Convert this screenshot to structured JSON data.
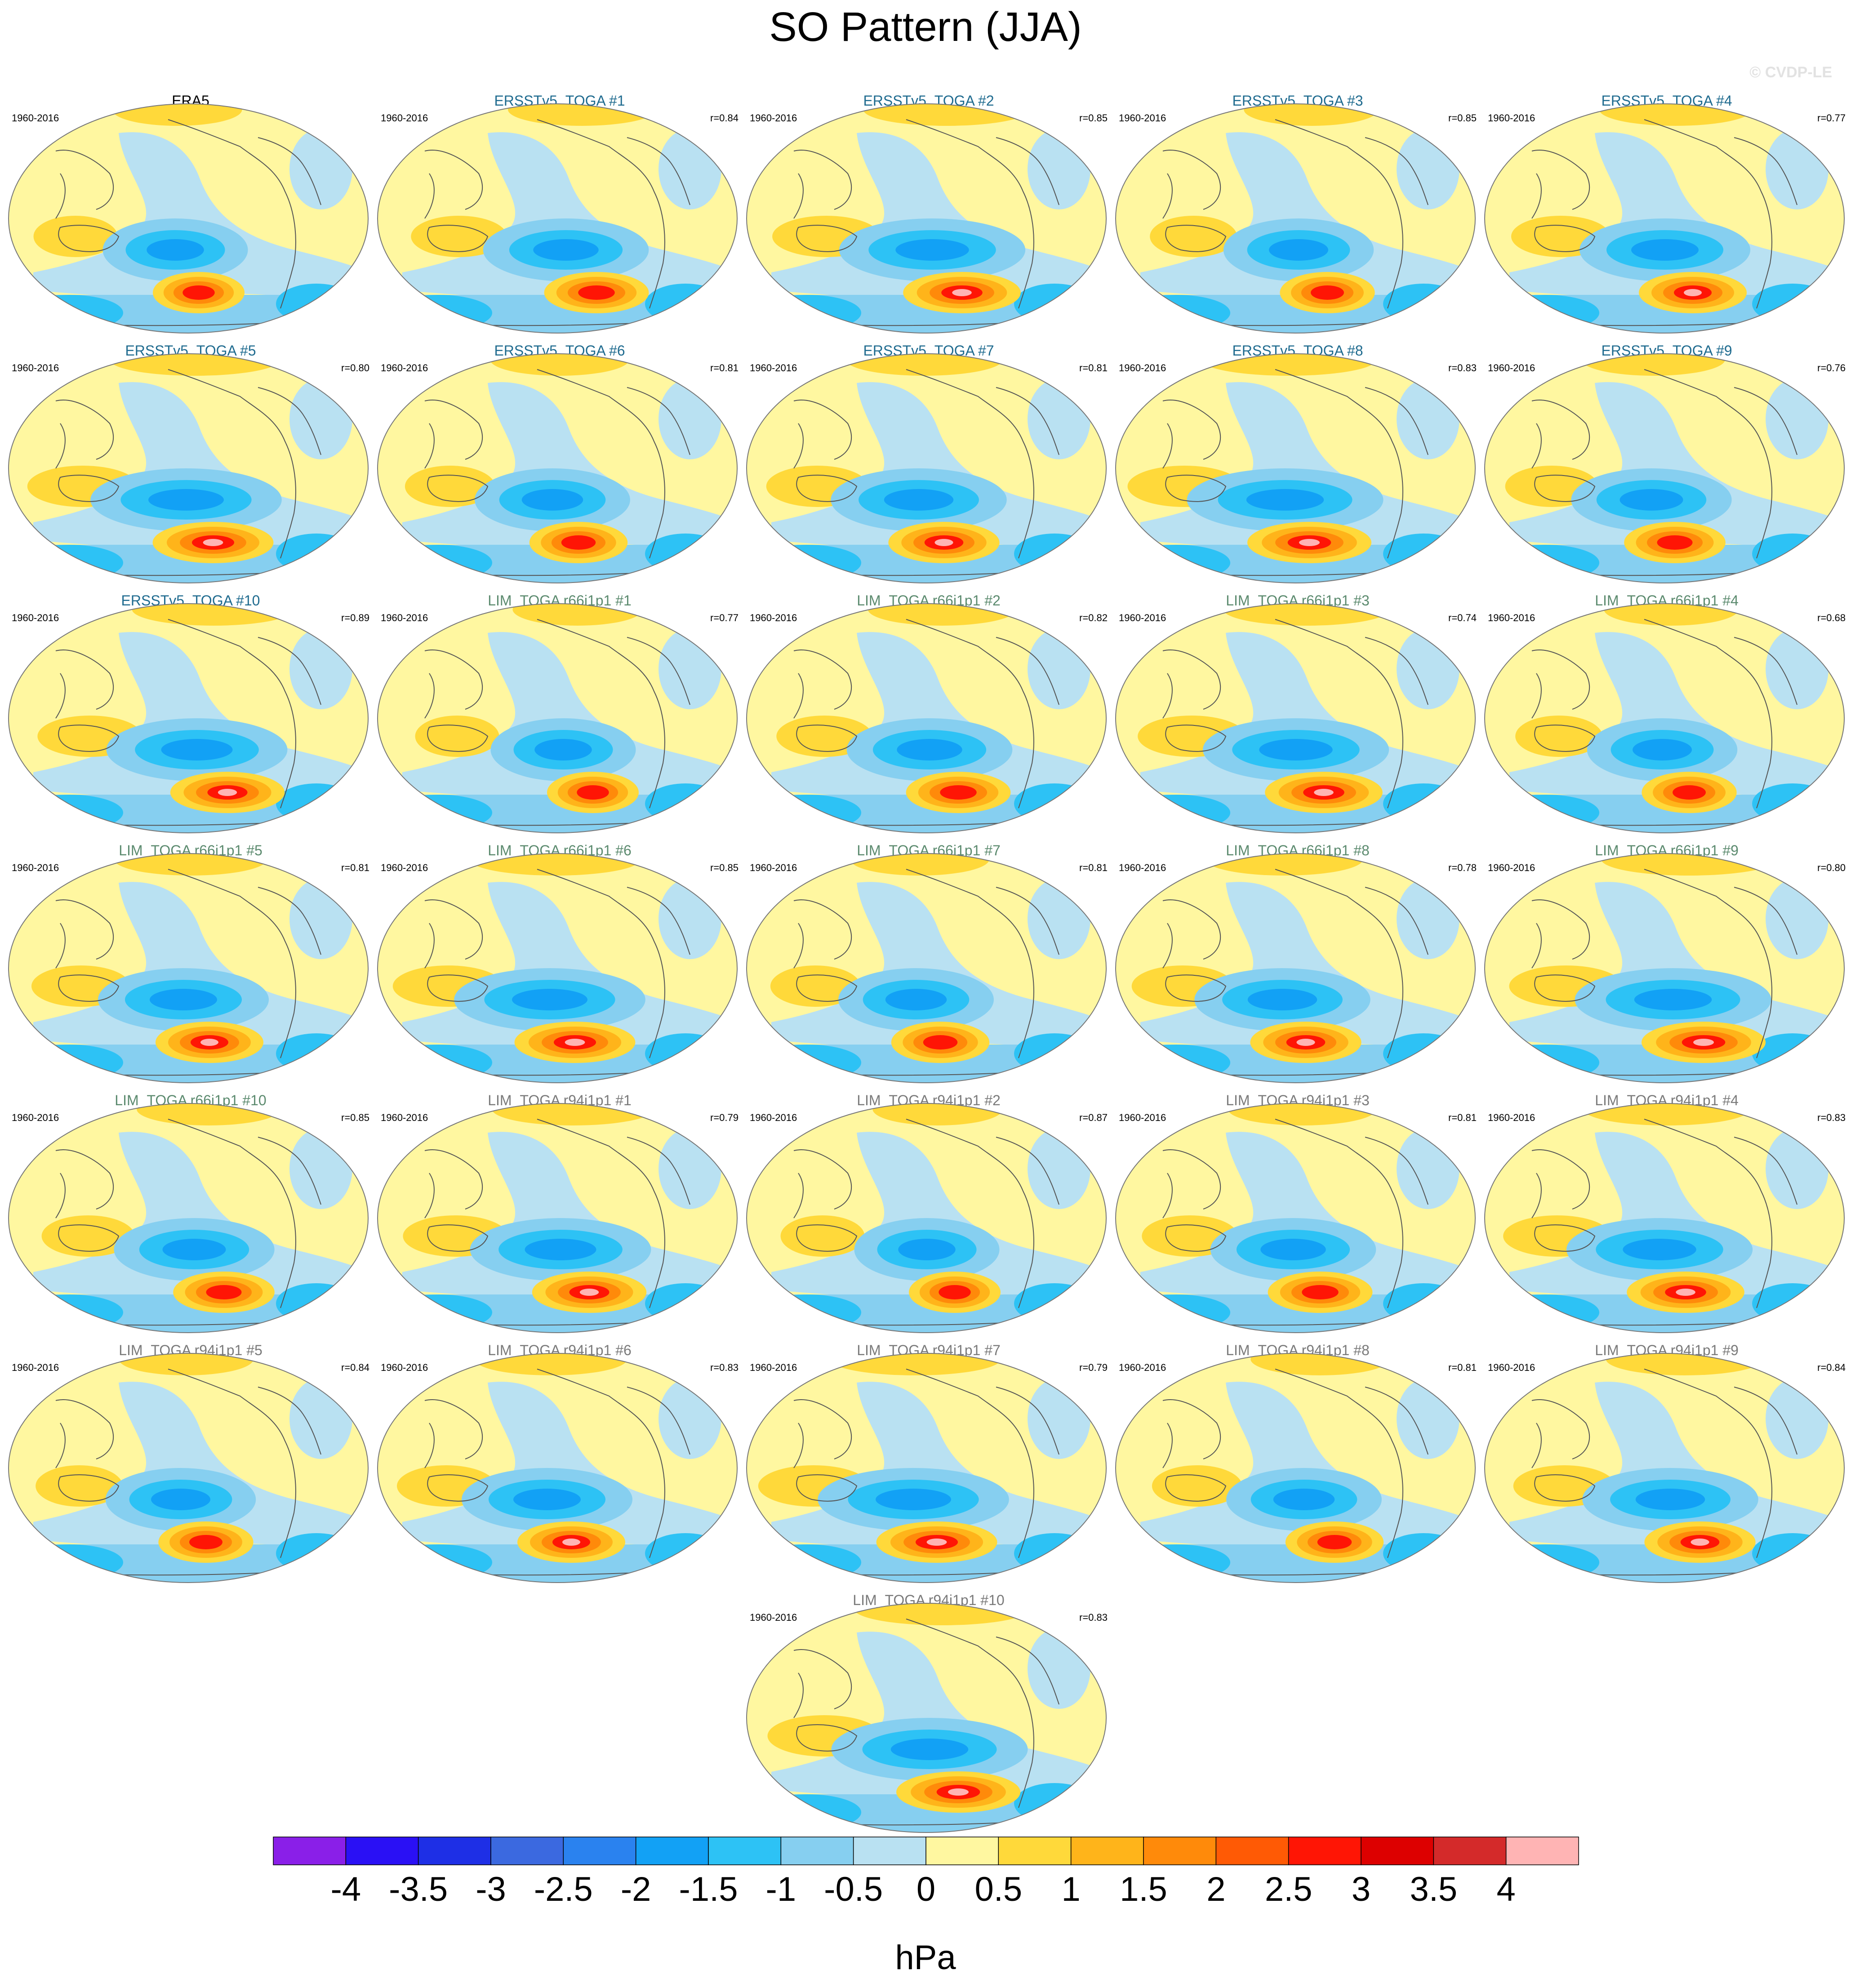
{
  "title": "SO Pattern (JJA)",
  "watermark": "© CVDP-LE",
  "panels": [
    {
      "title": "ERA5",
      "years": "1960-2016",
      "corr": "",
      "group": "obs"
    },
    {
      "title": "ERSSTv5_TOGA #1",
      "years": "1960-2016",
      "corr": "r=0.84",
      "group": "ersst"
    },
    {
      "title": "ERSSTv5_TOGA #2",
      "years": "1960-2016",
      "corr": "r=0.85",
      "group": "ersst"
    },
    {
      "title": "ERSSTv5_TOGA #3",
      "years": "1960-2016",
      "corr": "r=0.85",
      "group": "ersst"
    },
    {
      "title": "ERSSTv5_TOGA #4",
      "years": "1960-2016",
      "corr": "r=0.77",
      "group": "ersst"
    },
    {
      "title": "ERSSTv5_TOGA #5",
      "years": "1960-2016",
      "corr": "r=0.80",
      "group": "ersst"
    },
    {
      "title": "ERSSTv5_TOGA #6",
      "years": "1960-2016",
      "corr": "r=0.81",
      "group": "ersst"
    },
    {
      "title": "ERSSTv5_TOGA #7",
      "years": "1960-2016",
      "corr": "r=0.81",
      "group": "ersst"
    },
    {
      "title": "ERSSTv5_TOGA #8",
      "years": "1960-2016",
      "corr": "r=0.83",
      "group": "ersst"
    },
    {
      "title": "ERSSTv5_TOGA #9",
      "years": "1960-2016",
      "corr": "r=0.76",
      "group": "ersst"
    },
    {
      "title": "ERSSTv5_TOGA #10",
      "years": "1960-2016",
      "corr": "r=0.89",
      "group": "ersst"
    },
    {
      "title": "LIM_TOGA r66i1p1 #1",
      "years": "1960-2016",
      "corr": "r=0.77",
      "group": "r66"
    },
    {
      "title": "LIM_TOGA r66i1p1 #2",
      "years": "1960-2016",
      "corr": "r=0.82",
      "group": "r66"
    },
    {
      "title": "LIM_TOGA r66i1p1 #3",
      "years": "1960-2016",
      "corr": "r=0.74",
      "group": "r66"
    },
    {
      "title": "LIM_TOGA r66i1p1 #4",
      "years": "1960-2016",
      "corr": "r=0.68",
      "group": "r66"
    },
    {
      "title": "LIM_TOGA r66i1p1 #5",
      "years": "1960-2016",
      "corr": "r=0.81",
      "group": "r66"
    },
    {
      "title": "LIM_TOGA r66i1p1 #6",
      "years": "1960-2016",
      "corr": "r=0.85",
      "group": "r66"
    },
    {
      "title": "LIM_TOGA r66i1p1 #7",
      "years": "1960-2016",
      "corr": "r=0.81",
      "group": "r66"
    },
    {
      "title": "LIM_TOGA r66i1p1 #8",
      "years": "1960-2016",
      "corr": "r=0.78",
      "group": "r66"
    },
    {
      "title": "LIM_TOGA r66i1p1 #9",
      "years": "1960-2016",
      "corr": "r=0.80",
      "group": "r66"
    },
    {
      "title": "LIM_TOGA r66i1p1 #10",
      "years": "1960-2016",
      "corr": "r=0.85",
      "group": "r66"
    },
    {
      "title": "LIM_TOGA r94i1p1 #1",
      "years": "1960-2016",
      "corr": "r=0.79",
      "group": "r94"
    },
    {
      "title": "LIM_TOGA r94i1p1 #2",
      "years": "1960-2016",
      "corr": "r=0.87",
      "group": "r94"
    },
    {
      "title": "LIM_TOGA r94i1p1 #3",
      "years": "1960-2016",
      "corr": "r=0.81",
      "group": "r94"
    },
    {
      "title": "LIM_TOGA r94i1p1 #4",
      "years": "1960-2016",
      "corr": "r=0.83",
      "group": "r94"
    },
    {
      "title": "LIM_TOGA r94i1p1 #5",
      "years": "1960-2016",
      "corr": "r=0.84",
      "group": "r94"
    },
    {
      "title": "LIM_TOGA r94i1p1 #6",
      "years": "1960-2016",
      "corr": "r=0.83",
      "group": "r94"
    },
    {
      "title": "LIM_TOGA r94i1p1 #7",
      "years": "1960-2016",
      "corr": "r=0.79",
      "group": "r94"
    },
    {
      "title": "LIM_TOGA r94i1p1 #8",
      "years": "1960-2016",
      "corr": "r=0.81",
      "group": "r94"
    },
    {
      "title": "LIM_TOGA r94i1p1 #9",
      "years": "1960-2016",
      "corr": "r=0.84",
      "group": "r94"
    },
    {
      "title": "LIM_TOGA r94i1p1 #10",
      "years": "1960-2016",
      "corr": "r=0.83",
      "group": "r94"
    }
  ],
  "title_colors": {
    "obs": "#000000",
    "ersst": "#1f6b8f",
    "r66": "#5b8a6e",
    "r94": "#7a7a7a"
  },
  "colorbar": {
    "units": "hPa",
    "labels": [
      "-4",
      "-3.5",
      "-3",
      "-2.5",
      "-2",
      "-1.5",
      "-1",
      "-0.5",
      "0",
      "0.5",
      "1",
      "1.5",
      "2",
      "2.5",
      "3",
      "3.5",
      "4"
    ],
    "colors": [
      "#8a1fe8",
      "#2a10f5",
      "#1e2fe6",
      "#3b69e0",
      "#2a82ef",
      "#12a1f5",
      "#2dc2f5",
      "#86cff0",
      "#b9e1f2",
      "#fff7a0",
      "#ffd93a",
      "#ffb41a",
      "#ff8a0a",
      "#ff5a05",
      "#ff1505",
      "#dd0000",
      "#d42a2a",
      "#ffb4b4"
    ]
  }
}
